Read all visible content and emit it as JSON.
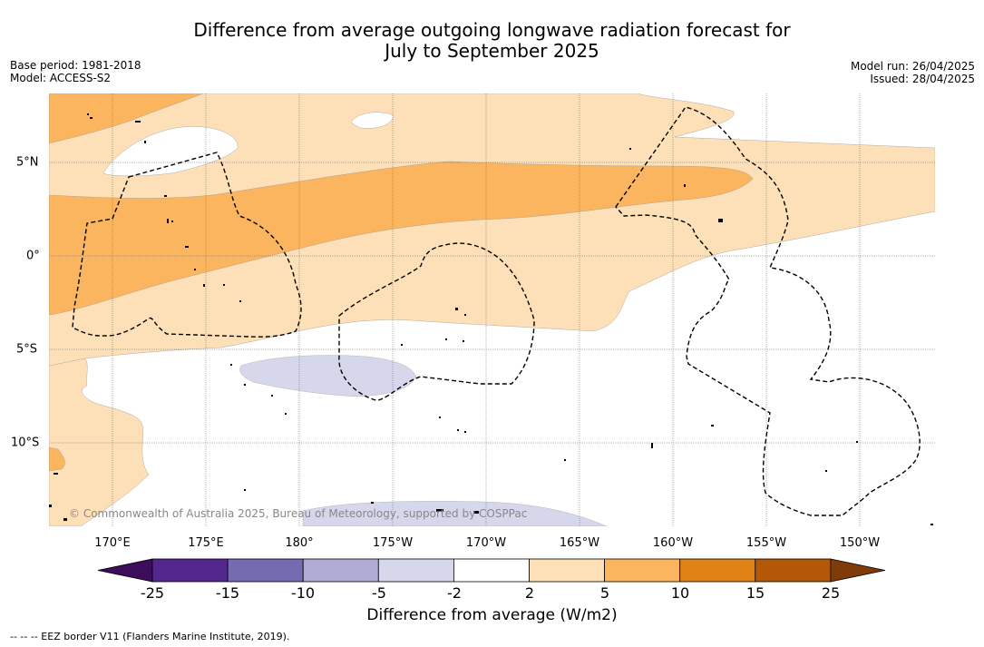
{
  "title_line1": "Difference from average outgoing longwave radiation forecast for",
  "title_line2": "July to September 2025",
  "base_period": "Base period: 1981-2018",
  "model": "Model: ACCESS-S2",
  "model_run": "Model run: 26/04/2025",
  "issued": "Issued: 28/04/2025",
  "copyright": "© Commonwealth of Australia 2025, Bureau of Meteorology, supported by COSPPac",
  "longitude_labels": [
    "170°E",
    "175°E",
    "180°",
    "175°W",
    "170°W",
    "165°W",
    "160°W",
    "155°W",
    "150°W"
  ],
  "latitude_labels": [
    "5°N",
    "0°",
    "5°S",
    "10°S"
  ],
  "colorbar": {
    "label": "Difference from average (W/m2)",
    "ticks": [
      "-25",
      "-15",
      "-10",
      "-5",
      "-2",
      "2",
      "5",
      "10",
      "15",
      "25"
    ],
    "colors": [
      "#3d0d5c",
      "#54278f",
      "#756bb1",
      "#b0abd3",
      "#d6d7eb",
      "#ffffff",
      "#fde0b8",
      "#fbb55f",
      "#e08317",
      "#b35806",
      "#7f3b08"
    ]
  },
  "eez_legend": "-- -- -- EEZ border V11 (Flanders Marine Institute, 2019)."
}
